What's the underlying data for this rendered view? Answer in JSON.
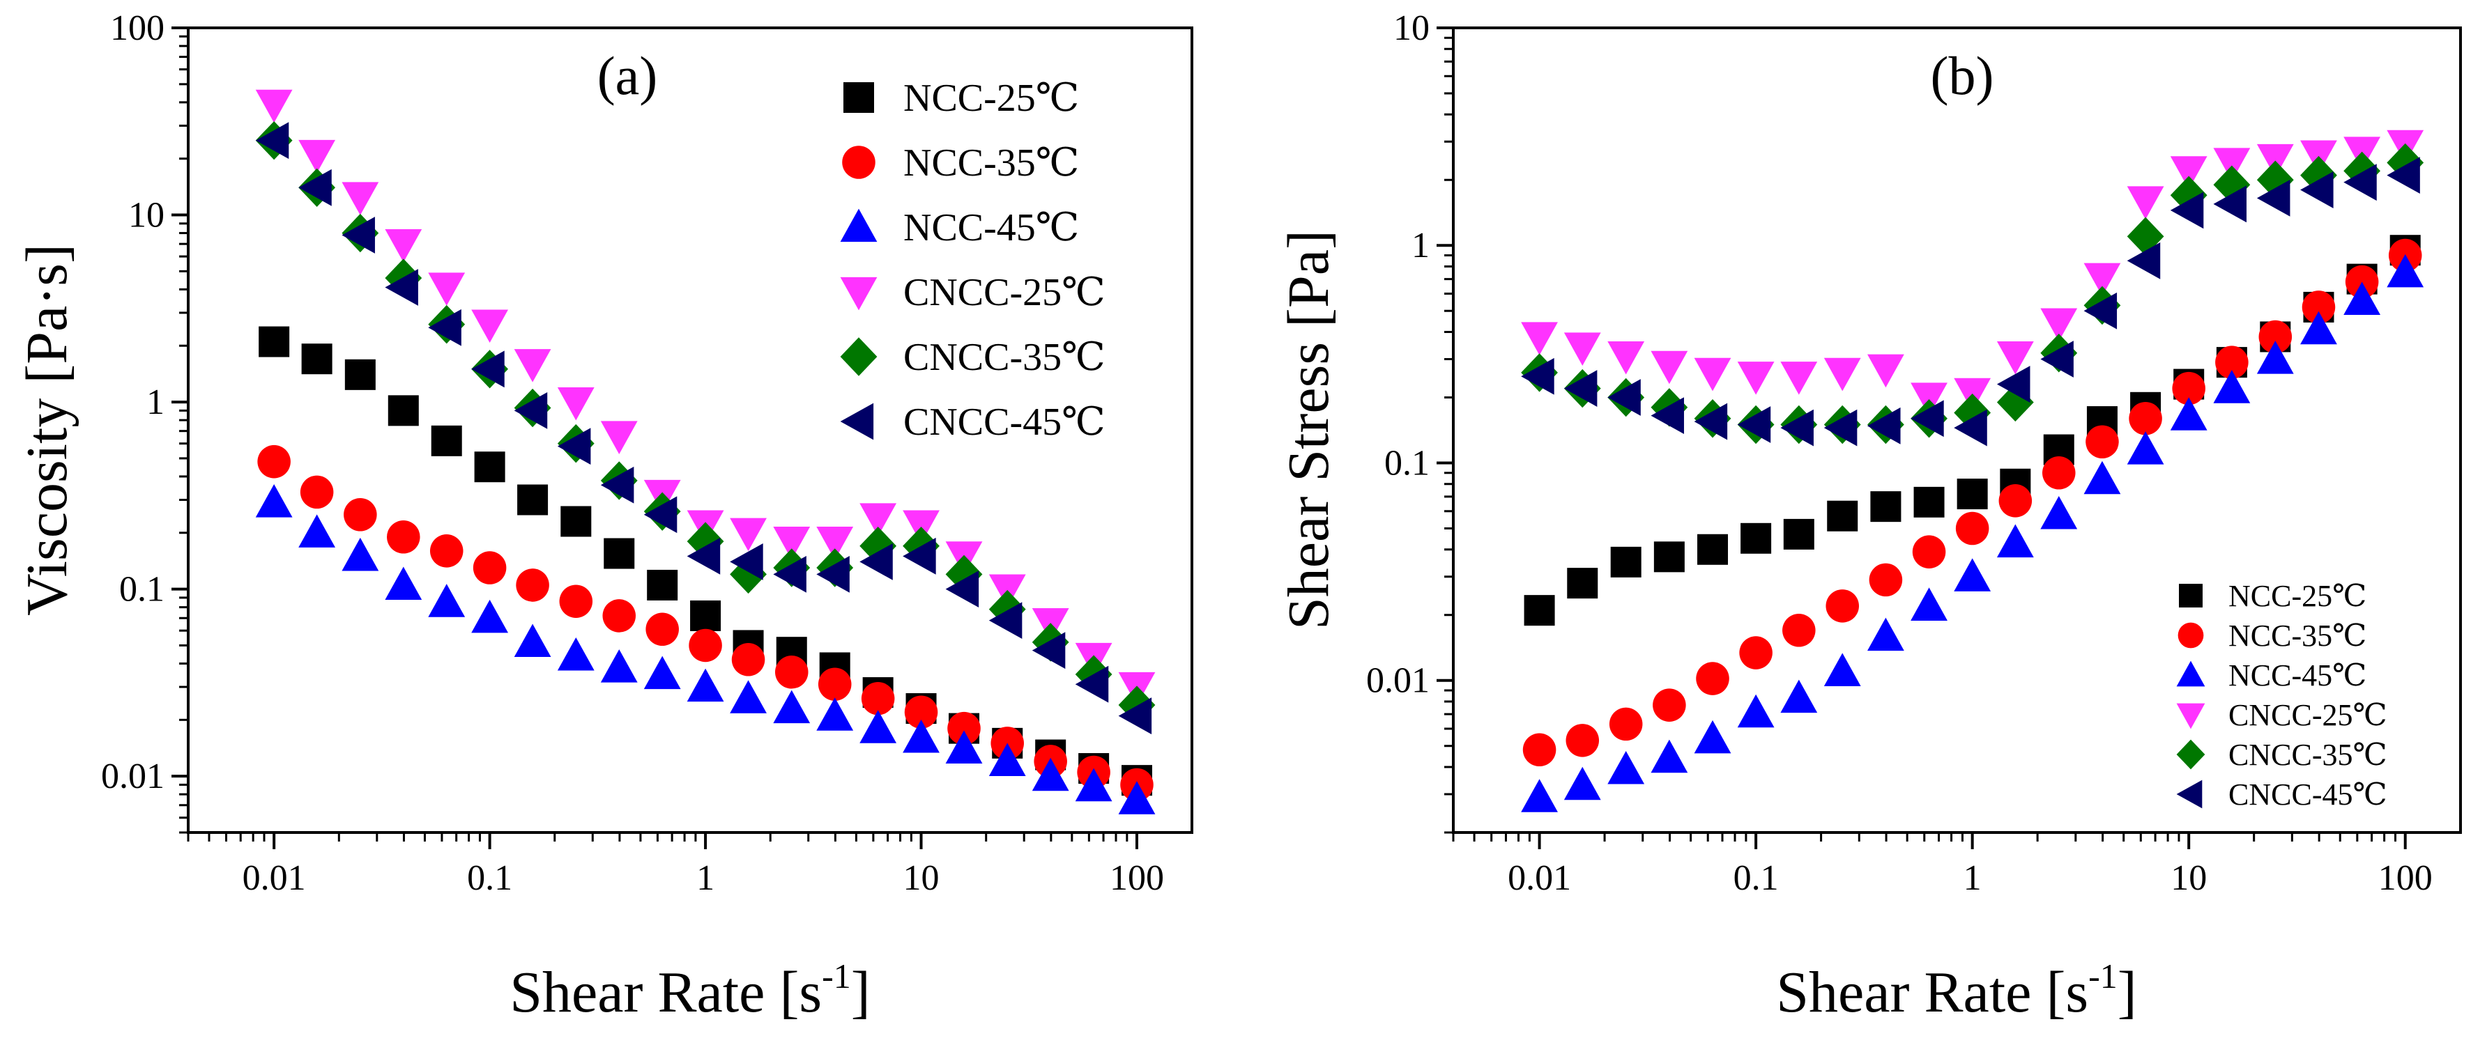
{
  "chart_data": [
    {
      "type": "scatter",
      "panel_label": "(a)",
      "title": "",
      "xlabel": "Shear Rate [s",
      "xlabel_sup": "-1",
      "xlabel_end": "]",
      "ylabel": "Viscosity [Pa·s]",
      "xscale": "log",
      "yscale": "log",
      "xlim": [
        0.004,
        180
      ],
      "ylim": [
        0.005,
        100
      ],
      "xticks": [
        0.01,
        0.1,
        1,
        10,
        100
      ],
      "xtick_labels": [
        "0.01",
        "0.1",
        "1",
        "10",
        "100"
      ],
      "yticks": [
        0.01,
        0.1,
        1,
        10,
        100
      ],
      "ytick_labels": [
        "0.01",
        "0.1",
        "1",
        "10",
        "100"
      ],
      "legend_position": "top-right",
      "x": [
        0.01,
        0.0158,
        0.0251,
        0.0398,
        0.0631,
        0.1,
        0.158,
        0.251,
        0.398,
        0.631,
        1,
        1.58,
        2.51,
        3.98,
        6.31,
        10,
        15.8,
        25.1,
        39.8,
        63.1,
        100
      ],
      "series": [
        {
          "name": "NCC-25℃",
          "marker": "square",
          "color": "#000000",
          "values": [
            2.1,
            1.7,
            1.4,
            0.9,
            0.62,
            0.45,
            0.3,
            0.23,
            0.155,
            0.105,
            0.072,
            0.05,
            0.046,
            0.038,
            0.028,
            0.023,
            0.018,
            0.015,
            0.013,
            0.011,
            0.0095
          ]
        },
        {
          "name": "NCC-35℃",
          "marker": "circle",
          "color": "#ff0000",
          "values": [
            0.48,
            0.33,
            0.25,
            0.19,
            0.16,
            0.13,
            0.105,
            0.086,
            0.072,
            0.061,
            0.05,
            0.042,
            0.036,
            0.031,
            0.026,
            0.022,
            0.018,
            0.015,
            0.012,
            0.0105,
            0.009
          ]
        },
        {
          "name": "NCC-45℃",
          "marker": "triangle-up",
          "color": "#0000ff",
          "values": [
            0.29,
            0.2,
            0.15,
            0.105,
            0.085,
            0.07,
            0.052,
            0.044,
            0.038,
            0.035,
            0.03,
            0.026,
            0.023,
            0.021,
            0.018,
            0.016,
            0.014,
            0.012,
            0.01,
            0.0088,
            0.0075
          ]
        },
        {
          "name": "CNCC-25℃",
          "marker": "triangle-down",
          "color": "#ff33ff",
          "values": [
            39,
            21,
            12.5,
            7,
            4.1,
            2.6,
            1.6,
            1.0,
            0.66,
            0.32,
            0.22,
            0.2,
            0.18,
            0.18,
            0.24,
            0.22,
            0.15,
            0.1,
            0.066,
            0.043,
            0.03
          ]
        },
        {
          "name": "CNCC-35℃",
          "marker": "diamond",
          "color": "#007700",
          "values": [
            25,
            14,
            8,
            4.6,
            2.6,
            1.5,
            0.93,
            0.6,
            0.38,
            0.26,
            0.18,
            0.12,
            0.13,
            0.13,
            0.17,
            0.17,
            0.12,
            0.078,
            0.052,
            0.035,
            0.024
          ]
        },
        {
          "name": "CNCC-45℃",
          "marker": "triangle-left",
          "color": "#000066",
          "values": [
            25,
            14,
            7.8,
            4.1,
            2.5,
            1.5,
            0.9,
            0.58,
            0.36,
            0.25,
            0.15,
            0.14,
            0.12,
            0.12,
            0.14,
            0.15,
            0.1,
            0.068,
            0.047,
            0.031,
            0.021
          ]
        }
      ]
    },
    {
      "type": "scatter",
      "panel_label": "(b)",
      "title": "",
      "xlabel": "Shear Rate [s",
      "xlabel_sup": "-1",
      "xlabel_end": "]",
      "ylabel": "Shear Stress [Pa]",
      "xscale": "log",
      "yscale": "log",
      "xlim": [
        0.004,
        180
      ],
      "ylim": [
        0.002,
        10
      ],
      "xticks": [
        0.01,
        0.1,
        1,
        10,
        100
      ],
      "xtick_labels": [
        "0.01",
        "0.1",
        "1",
        "10",
        "100"
      ],
      "yticks": [
        0.01,
        0.1,
        1,
        10
      ],
      "ytick_labels": [
        "0.01",
        "0.1",
        "1",
        "10"
      ],
      "legend_position": "bottom-right",
      "x": [
        0.01,
        0.0158,
        0.0251,
        0.0398,
        0.0631,
        0.1,
        0.158,
        0.251,
        0.398,
        0.631,
        1,
        1.58,
        2.51,
        3.98,
        6.31,
        10,
        15.8,
        25.1,
        39.8,
        63.1,
        100
      ],
      "series": [
        {
          "name": "NCC-25℃",
          "marker": "square",
          "color": "#000000",
          "values": [
            0.021,
            0.028,
            0.035,
            0.037,
            0.04,
            0.045,
            0.047,
            0.057,
            0.063,
            0.066,
            0.072,
            0.08,
            0.115,
            0.155,
            0.18,
            0.23,
            0.29,
            0.38,
            0.52,
            0.7,
            0.95
          ]
        },
        {
          "name": "NCC-35℃",
          "marker": "circle",
          "color": "#ff0000",
          "values": [
            0.0048,
            0.0053,
            0.0063,
            0.0077,
            0.0102,
            0.0134,
            0.017,
            0.022,
            0.029,
            0.039,
            0.05,
            0.067,
            0.09,
            0.125,
            0.16,
            0.22,
            0.29,
            0.38,
            0.52,
            0.68,
            0.9
          ]
        },
        {
          "name": "NCC-45℃",
          "marker": "triangle-up",
          "color": "#0000ff",
          "values": [
            0.0029,
            0.0033,
            0.0039,
            0.0044,
            0.0054,
            0.0071,
            0.0083,
            0.011,
            0.016,
            0.022,
            0.03,
            0.043,
            0.058,
            0.084,
            0.115,
            0.165,
            0.22,
            0.3,
            0.41,
            0.56,
            0.75
          ]
        },
        {
          "name": "CNCC-25℃",
          "marker": "triangle-down",
          "color": "#ff33ff",
          "values": [
            0.38,
            0.34,
            0.31,
            0.28,
            0.26,
            0.25,
            0.25,
            0.26,
            0.27,
            0.2,
            0.21,
            0.31,
            0.44,
            0.71,
            1.6,
            2.2,
            2.4,
            2.5,
            2.6,
            2.7,
            2.9
          ]
        },
        {
          "name": "CNCC-35℃",
          "marker": "diamond",
          "color": "#007700",
          "values": [
            0.26,
            0.22,
            0.2,
            0.18,
            0.16,
            0.15,
            0.15,
            0.15,
            0.15,
            0.16,
            0.17,
            0.19,
            0.32,
            0.53,
            1.1,
            1.7,
            1.9,
            2.0,
            2.1,
            2.2,
            2.4
          ]
        },
        {
          "name": "CNCC-45℃",
          "marker": "triangle-left",
          "color": "#000066",
          "values": [
            0.25,
            0.22,
            0.2,
            0.165,
            0.155,
            0.15,
            0.145,
            0.145,
            0.148,
            0.16,
            0.145,
            0.23,
            0.3,
            0.5,
            0.85,
            1.45,
            1.55,
            1.65,
            1.8,
            1.95,
            2.1
          ]
        }
      ]
    }
  ]
}
